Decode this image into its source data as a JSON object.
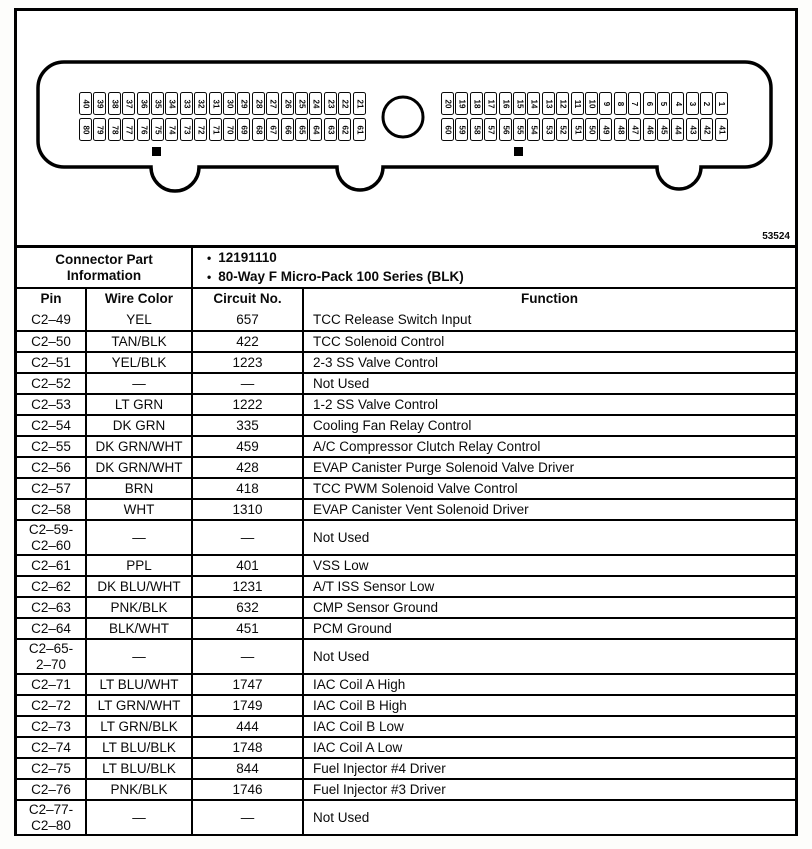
{
  "colors": {
    "ink": "#000000",
    "paper": "#ffffff"
  },
  "figure": {
    "figure_number": "53524",
    "connector": {
      "left_top_pins": [
        "40",
        "39",
        "38",
        "37",
        "36",
        "35",
        "34",
        "33",
        "32",
        "31",
        "30",
        "29",
        "28",
        "27",
        "26",
        "25",
        "24",
        "23",
        "22",
        "21"
      ],
      "left_bottom_pins": [
        "80",
        "79",
        "78",
        "77",
        "76",
        "75",
        "74",
        "73",
        "72",
        "71",
        "70",
        "69",
        "68",
        "67",
        "66",
        "65",
        "64",
        "63",
        "62",
        "61"
      ],
      "right_top_pins": [
        "20",
        "19",
        "18",
        "17",
        "16",
        "15",
        "14",
        "13",
        "12",
        "11",
        "10",
        "9",
        "8",
        "7",
        "6",
        "5",
        "4",
        "3",
        "2",
        "1"
      ],
      "right_bottom_pins": [
        "60",
        "59",
        "58",
        "57",
        "56",
        "55",
        "54",
        "53",
        "52",
        "51",
        "50",
        "49",
        "48",
        "47",
        "46",
        "45",
        "44",
        "43",
        "42",
        "41"
      ]
    }
  },
  "table": {
    "part_info_label": "Connector Part\nInformation",
    "part_info_bullets": [
      "12191110",
      "80-Way F Micro-Pack 100 Series (BLK)"
    ],
    "columns": [
      "Pin",
      "Wire Color",
      "Circuit No.",
      "Function"
    ],
    "rows": [
      {
        "pin": "C2–49",
        "wire_color": "YEL",
        "circuit": "657",
        "function": "TCC Release Switch Input"
      },
      {
        "pin": "C2–50",
        "wire_color": "TAN/BLK",
        "circuit": "422",
        "function": "TCC Solenoid Control"
      },
      {
        "pin": "C2–51",
        "wire_color": "YEL/BLK",
        "circuit": "1223",
        "function": "2-3 SS Valve Control"
      },
      {
        "pin": "C2–52",
        "wire_color": "—",
        "circuit": "—",
        "function": "Not Used"
      },
      {
        "pin": "C2–53",
        "wire_color": "LT GRN",
        "circuit": "1222",
        "function": "1-2 SS Valve Control"
      },
      {
        "pin": "C2–54",
        "wire_color": "DK GRN",
        "circuit": "335",
        "function": "Cooling Fan Relay Control"
      },
      {
        "pin": "C2–55",
        "wire_color": "DK GRN/WHT",
        "circuit": "459",
        "function": "A/C Compressor Clutch Relay Control"
      },
      {
        "pin": "C2–56",
        "wire_color": "DK GRN/WHT",
        "circuit": "428",
        "function": "EVAP Canister Purge Solenoid Valve Driver"
      },
      {
        "pin": "C2–57",
        "wire_color": "BRN",
        "circuit": "418",
        "function": "TCC PWM Solenoid Valve Control"
      },
      {
        "pin": "C2–58",
        "wire_color": "WHT",
        "circuit": "1310",
        "function": "EVAP Canister Vent Solenoid Driver"
      },
      {
        "pin": "C2–59-\nC2–60",
        "wire_color": "—",
        "circuit": "—",
        "function": "Not Used"
      },
      {
        "pin": "C2–61",
        "wire_color": "PPL",
        "circuit": "401",
        "function": "VSS Low"
      },
      {
        "pin": "C2–62",
        "wire_color": "DK BLU/WHT",
        "circuit": "1231",
        "function": "A/T ISS Sensor Low"
      },
      {
        "pin": "C2–63",
        "wire_color": "PNK/BLK",
        "circuit": "632",
        "function": "CMP Sensor Ground"
      },
      {
        "pin": "C2–64",
        "wire_color": "BLK/WHT",
        "circuit": "451",
        "function": "PCM Ground"
      },
      {
        "pin": "C2–65-\n2–70",
        "wire_color": "—",
        "circuit": "—",
        "function": "Not Used"
      },
      {
        "pin": "C2–71",
        "wire_color": "LT BLU/WHT",
        "circuit": "1747",
        "function": "IAC Coil A High"
      },
      {
        "pin": "C2–72",
        "wire_color": "LT GRN/WHT",
        "circuit": "1749",
        "function": "IAC Coil B High"
      },
      {
        "pin": "C2–73",
        "wire_color": "LT GRN/BLK",
        "circuit": "444",
        "function": "IAC Coil B Low"
      },
      {
        "pin": "C2–74",
        "wire_color": "LT BLU/BLK",
        "circuit": "1748",
        "function": "IAC Coil A Low"
      },
      {
        "pin": "C2–75",
        "wire_color": "LT BLU/BLK",
        "circuit": "844",
        "function": "Fuel Injector #4 Driver"
      },
      {
        "pin": "C2–76",
        "wire_color": "PNK/BLK",
        "circuit": "1746",
        "function": "Fuel Injector #3 Driver"
      },
      {
        "pin": "C2–77-\nC2–80",
        "wire_color": "—",
        "circuit": "—",
        "function": "Not Used"
      }
    ]
  }
}
